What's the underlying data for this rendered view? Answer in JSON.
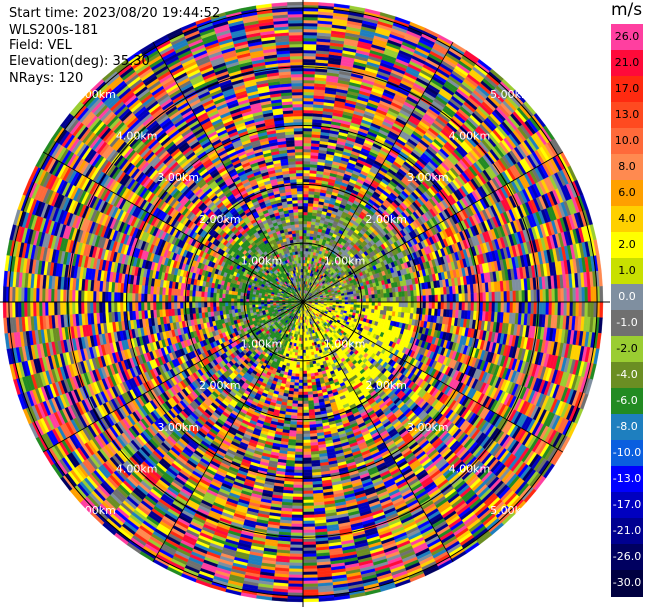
{
  "header": {
    "start_time": "Start time: 2023/08/20 19:44:52",
    "instrument": "WLS200s-181",
    "field": "Field: VEL",
    "elevation": "Elevation(deg): 35.30",
    "nrays": "NRays: 120"
  },
  "colorbar": {
    "unit": "m/s",
    "segments": [
      {
        "label": "26.0",
        "color": "#ff3fa0"
      },
      {
        "label": "21.0",
        "color": "#ff0a3a"
      },
      {
        "label": "17.0",
        "color": "#ff2a10"
      },
      {
        "label": "13.0",
        "color": "#ff4a20"
      },
      {
        "label": "10.0",
        "color": "#ff6a3a"
      },
      {
        "label": "8.0",
        "color": "#ff8a50"
      },
      {
        "label": "6.0",
        "color": "#ffa000"
      },
      {
        "label": "4.0",
        "color": "#ffd000"
      },
      {
        "label": "2.0",
        "color": "#ffff00"
      },
      {
        "label": "1.0",
        "color": "#c8e000"
      },
      {
        "label": "0.0",
        "color": "#7f8fa0"
      },
      {
        "label": "-1.0",
        "color": "#707070"
      },
      {
        "label": "-2.0",
        "color": "#9acd32"
      },
      {
        "label": "-4.0",
        "color": "#6b8e23"
      },
      {
        "label": "-6.0",
        "color": "#228b22"
      },
      {
        "label": "-8.0",
        "color": "#1e7fbf"
      },
      {
        "label": "-10.0",
        "color": "#0a5fdf"
      },
      {
        "label": "-13.0",
        "color": "#0000ff"
      },
      {
        "label": "-17.0",
        "color": "#0000c0"
      },
      {
        "label": "-21.0",
        "color": "#000090"
      },
      {
        "label": "-26.0",
        "color": "#000060"
      },
      {
        "label": "-30.0",
        "color": "#000040"
      }
    ]
  },
  "range_rings": [
    {
      "km": 1,
      "label": "1.00km"
    },
    {
      "km": 2,
      "label": "2.00km"
    },
    {
      "km": 3,
      "label": "3.00km"
    },
    {
      "km": 4,
      "label": "4.00km"
    },
    {
      "km": 5,
      "label": "5.00km"
    }
  ],
  "max_range_km": 5.1,
  "noise_palette": [
    "#ff3fa0",
    "#ff0a3a",
    "#ff2a10",
    "#ffa000",
    "#ffff00",
    "#9acd32",
    "#6b8e23",
    "#228b22",
    "#0000ff",
    "#000090",
    "#000060",
    "#707070",
    "#7f8fa0",
    "#ff6a3a",
    "#1e7fbf",
    "#ffd000",
    "#ff8a50",
    "#0000c0"
  ],
  "signal_palette": [
    "#9acd32",
    "#6b8e23",
    "#228b22",
    "#707070",
    "#7f8fa0",
    "#ffff00",
    "#c8e000"
  ]
}
